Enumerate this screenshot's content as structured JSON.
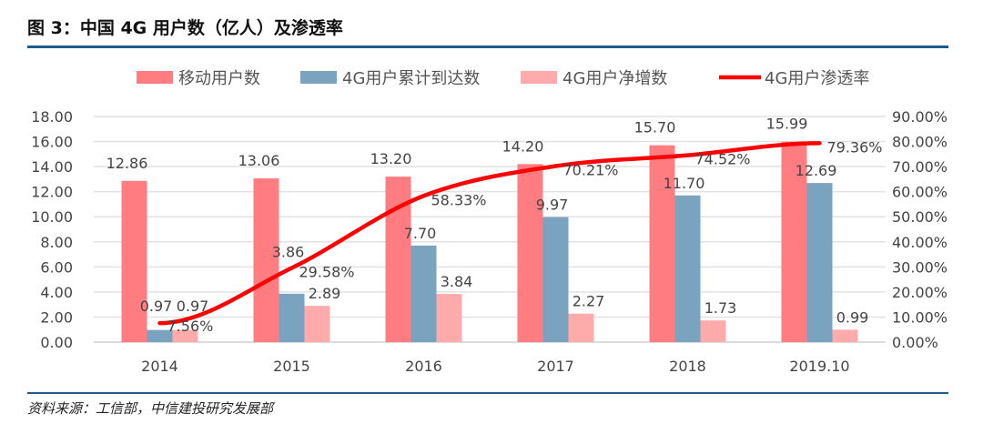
{
  "title": "图 3：中国 4G 用户数（亿人）及渗透率",
  "source": "资料来源：工信部，中信建投研究发展部",
  "chart_data": {
    "type": "bar",
    "categories": [
      "2014",
      "2015",
      "2016",
      "2017",
      "2018",
      "2019.10"
    ],
    "series": [
      {
        "name": "移动用户数",
        "type": "bar",
        "axis": "left",
        "color": "#ff7c80",
        "values": [
          12.86,
          13.06,
          13.2,
          14.2,
          15.7,
          15.99
        ]
      },
      {
        "name": "4G用户累计到达数",
        "type": "bar",
        "axis": "left",
        "color": "#7aa3bf",
        "values": [
          0.97,
          3.86,
          7.7,
          9.97,
          11.7,
          12.69
        ]
      },
      {
        "name": "4G用户净增数",
        "type": "bar",
        "axis": "left",
        "color": "#ffabab",
        "values": [
          0.97,
          2.89,
          3.84,
          2.27,
          1.73,
          0.99
        ]
      },
      {
        "name": "4G用户渗透率",
        "type": "line",
        "axis": "right",
        "color": "#ff0000",
        "values": [
          7.56,
          29.58,
          58.33,
          70.21,
          74.52,
          79.36
        ],
        "labels": [
          "7.56%",
          "29.58%",
          "58.33%",
          "70.21%",
          "74.52%",
          "79.36%"
        ]
      }
    ],
    "ylim": [
      0,
      18
    ],
    "yticks": [
      "0.00",
      "2.00",
      "4.00",
      "6.00",
      "8.00",
      "10.00",
      "12.00",
      "14.00",
      "16.00",
      "18.00"
    ],
    "y2lim": [
      0,
      90
    ],
    "y2ticks": [
      "0.00%",
      "10.00%",
      "20.00%",
      "30.00%",
      "40.00%",
      "50.00%",
      "60.00%",
      "70.00%",
      "80.00%",
      "90.00%"
    ],
    "grid": true,
    "legend": "top"
  }
}
